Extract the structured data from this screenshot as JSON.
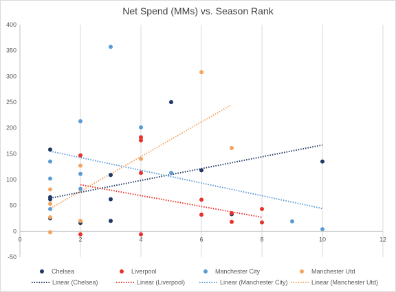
{
  "chart_data": {
    "type": "scatter",
    "title": "Net Spend (MMs) vs. Season Rank",
    "xlabel": "",
    "ylabel": "",
    "xlim": [
      0,
      12
    ],
    "ylim": [
      -50,
      400
    ],
    "x_ticks": [
      0,
      2,
      4,
      6,
      8,
      10,
      12
    ],
    "y_ticks": [
      -50,
      0,
      50,
      100,
      150,
      200,
      250,
      300,
      350,
      400
    ],
    "grid": "vertical",
    "legend_position": "bottom",
    "series": [
      {
        "name": "Chelsea",
        "color": "#1f3864",
        "points": [
          [
            1,
            158
          ],
          [
            1,
            66
          ],
          [
            1,
            62
          ],
          [
            1,
            25
          ],
          [
            2,
            16
          ],
          [
            3,
            109
          ],
          [
            3,
            62
          ],
          [
            3,
            20
          ],
          [
            5,
            250
          ],
          [
            6,
            118
          ],
          [
            7,
            33
          ],
          [
            10,
            135
          ]
        ],
        "trendline": {
          "name": "Linear (Chelsea)",
          "x_range": [
            1,
            10
          ],
          "y_start": 64,
          "y_end": 167
        }
      },
      {
        "name": "Liverpool",
        "color": "#e8312a",
        "points": [
          [
            2,
            147
          ],
          [
            2,
            -6
          ],
          [
            4,
            182
          ],
          [
            4,
            176
          ],
          [
            4,
            113
          ],
          [
            4,
            -6
          ],
          [
            6,
            61
          ],
          [
            6,
            32
          ],
          [
            7,
            35
          ],
          [
            7,
            18
          ],
          [
            8,
            43
          ],
          [
            8,
            17
          ]
        ],
        "trendline": {
          "name": "Linear (Liverpool)",
          "x_range": [
            2,
            8
          ],
          "y_start": 90,
          "y_end": 27
        }
      },
      {
        "name": "Manchester City",
        "color": "#5b9bd5",
        "points": [
          [
            1,
            135
          ],
          [
            1,
            102
          ],
          [
            1,
            43
          ],
          [
            2,
            213
          ],
          [
            2,
            111
          ],
          [
            2,
            82
          ],
          [
            3,
            357
          ],
          [
            4,
            201
          ],
          [
            5,
            113
          ],
          [
            9,
            19
          ],
          [
            10,
            4
          ]
        ],
        "trendline": {
          "name": "Linear (Manchester City)",
          "x_range": [
            1,
            10
          ],
          "y_start": 155,
          "y_end": 44
        }
      },
      {
        "name": "Manchester Utd",
        "color": "#f4a460",
        "points": [
          [
            1,
            81
          ],
          [
            1,
            53
          ],
          [
            1,
            27
          ],
          [
            1,
            -2
          ],
          [
            2,
            127
          ],
          [
            2,
            20
          ],
          [
            4,
            140
          ],
          [
            6,
            308
          ],
          [
            7,
            161
          ]
        ],
        "trendline": {
          "name": "Linear (Manchester Utd)",
          "x_range": [
            1,
            7
          ],
          "y_start": 44,
          "y_end": 245
        }
      }
    ]
  }
}
